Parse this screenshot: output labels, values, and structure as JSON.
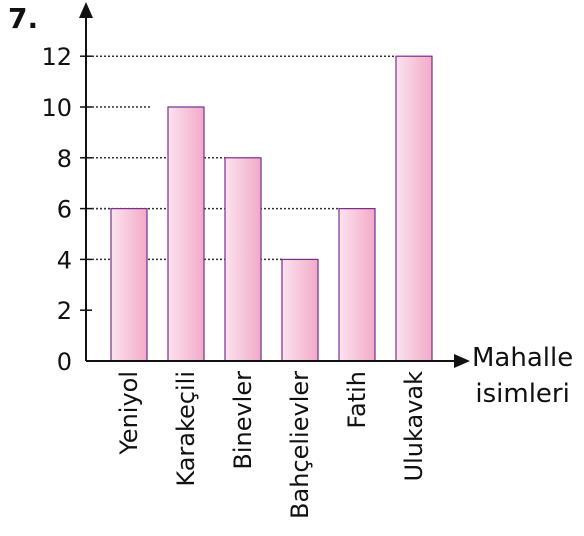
{
  "question_number": "7.",
  "chart_data": {
    "type": "bar",
    "categories": [
      "Yeniyol",
      "Karakeçili",
      "Binevler",
      "Bahçelievler",
      "Fatih",
      "Ulukavak"
    ],
    "values": [
      6,
      10,
      8,
      4,
      6,
      12
    ],
    "yticks": [
      0,
      2,
      4,
      6,
      8,
      10,
      12
    ],
    "ylim": [
      0,
      12
    ],
    "xlabel_line1": "Mahalle",
    "xlabel_line2": "isimleri",
    "ylabel": "",
    "grid": "dotted reference lines to bar tops",
    "colors": {
      "bar_fill_light": "#fbe3ee",
      "bar_fill_dark": "#f2aac8",
      "bar_stroke": "#7a2d8c",
      "axis": "#111111",
      "dots": "#333333"
    }
  }
}
